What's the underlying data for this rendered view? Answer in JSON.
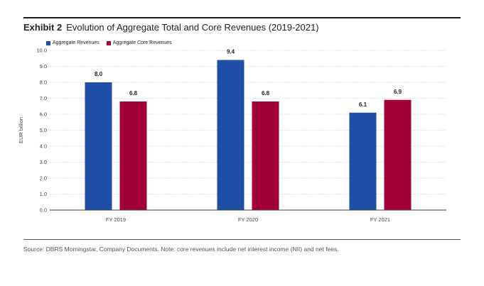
{
  "header": {
    "exhibit_label": "Exhibit 2",
    "title_text": "Evolution of Aggregate Total and Core Revenues (2019-2021)"
  },
  "footer": {
    "source_text": "Source: DBRS Morningstar, Company Documents. Note: core revenues include net interest income (NII) and net fees."
  },
  "colors": {
    "aggregate": "#1f4fa6",
    "core": "#a3003a",
    "grid": "#bbbbbb",
    "axis": "#444444"
  },
  "chart_data": {
    "type": "bar",
    "title": "Evolution of Aggregate Total and Core Revenues (2019-2021)",
    "xlabel": "",
    "ylabel": "EUR billion",
    "ylim": [
      0,
      10
    ],
    "yticks": [
      "0.0",
      "1.0",
      "2.0",
      "3.0",
      "4.0",
      "5.0",
      "6.0",
      "7.0",
      "8.0",
      "9.0",
      "10.0"
    ],
    "categories": [
      "FY 2019",
      "FY 2020",
      "FY 2021"
    ],
    "series": [
      {
        "name": "Aggregate Revenues",
        "values": [
          8.0,
          9.4,
          6.1
        ],
        "labels": [
          "8.0",
          "9.4",
          "6.1"
        ]
      },
      {
        "name": "Aggregate Core Revenues",
        "values": [
          6.8,
          6.8,
          6.9
        ],
        "labels": [
          "6.8",
          "6.8",
          "6.9"
        ]
      }
    ],
    "legend": "top-left",
    "grid": true
  }
}
